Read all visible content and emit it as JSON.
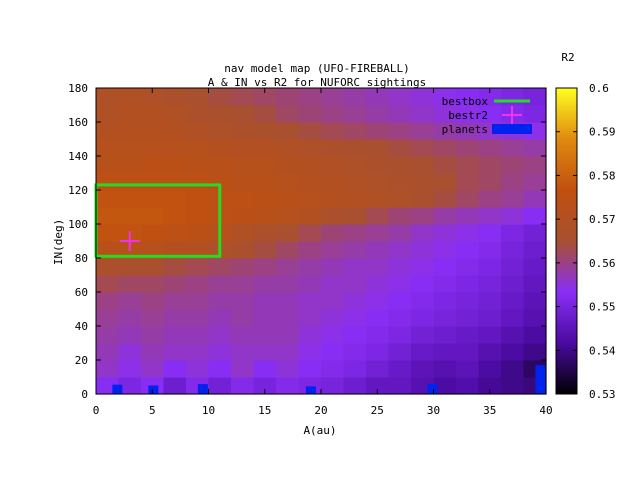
{
  "chart_data": {
    "type": "heatmap",
    "title_line1": "nav model map (UFO-FIREBALL)",
    "title_line2": "A & IN vs R2 for NUFORC sightings",
    "xlabel": "A(au)",
    "ylabel": "IN(deg)",
    "xlim": [
      0,
      40
    ],
    "ylim": [
      0,
      180
    ],
    "xticks": [
      "0",
      "5",
      "10",
      "15",
      "20",
      "25",
      "30",
      "35",
      "40"
    ],
    "xtick_values": [
      0,
      5,
      10,
      15,
      20,
      25,
      30,
      35,
      40
    ],
    "yticks": [
      "0",
      "20",
      "40",
      "60",
      "80",
      "100",
      "120",
      "140",
      "160",
      "180"
    ],
    "ytick_values": [
      0,
      20,
      40,
      60,
      80,
      100,
      120,
      140,
      160,
      180
    ],
    "colorbar": {
      "label": "R2",
      "range": [
        0.53,
        0.6
      ],
      "ticks": [
        "0.53",
        "0.54",
        "0.55",
        "0.56",
        "0.57",
        "0.58",
        "0.59",
        "0.6"
      ],
      "tick_values": [
        0.53,
        0.54,
        0.55,
        0.56,
        0.57,
        0.58,
        0.59,
        0.6
      ]
    },
    "palette": [
      "#000000",
      "#4a0aa0",
      "#8a2ef5",
      "#a85030",
      "#c05010",
      "#e08a10",
      "#ffff20"
    ],
    "grid_x_step": 2,
    "grid_y_step": 10,
    "grid_x_start": 0,
    "grid_y_start": 0,
    "grid": [
      [
        0.553,
        0.551,
        0.553,
        0.548,
        0.552,
        0.549,
        0.552,
        0.55,
        0.552,
        0.551,
        0.55,
        0.548,
        0.546,
        0.546,
        0.544,
        0.542,
        0.543,
        0.541,
        0.54,
        0.539
      ],
      [
        0.556,
        0.554,
        0.556,
        0.553,
        0.555,
        0.553,
        0.556,
        0.553,
        0.555,
        0.553,
        0.552,
        0.551,
        0.549,
        0.547,
        0.545,
        0.544,
        0.545,
        0.542,
        0.54,
        0.537
      ],
      [
        0.557,
        0.555,
        0.557,
        0.556,
        0.556,
        0.555,
        0.556,
        0.556,
        0.556,
        0.554,
        0.553,
        0.552,
        0.551,
        0.549,
        0.547,
        0.546,
        0.546,
        0.544,
        0.542,
        0.54
      ],
      [
        0.558,
        0.557,
        0.558,
        0.557,
        0.557,
        0.556,
        0.557,
        0.557,
        0.557,
        0.555,
        0.554,
        0.553,
        0.552,
        0.551,
        0.549,
        0.548,
        0.547,
        0.546,
        0.544,
        0.542
      ],
      [
        0.559,
        0.558,
        0.559,
        0.558,
        0.558,
        0.557,
        0.558,
        0.557,
        0.557,
        0.556,
        0.555,
        0.554,
        0.553,
        0.552,
        0.551,
        0.55,
        0.549,
        0.548,
        0.546,
        0.544
      ],
      [
        0.56,
        0.559,
        0.56,
        0.559,
        0.559,
        0.558,
        0.558,
        0.557,
        0.557,
        0.556,
        0.556,
        0.555,
        0.554,
        0.553,
        0.552,
        0.551,
        0.55,
        0.549,
        0.547,
        0.545
      ],
      [
        0.563,
        0.562,
        0.562,
        0.561,
        0.56,
        0.559,
        0.559,
        0.558,
        0.558,
        0.557,
        0.556,
        0.556,
        0.555,
        0.554,
        0.553,
        0.552,
        0.551,
        0.55,
        0.548,
        0.546
      ],
      [
        0.567,
        0.566,
        0.566,
        0.564,
        0.563,
        0.562,
        0.561,
        0.56,
        0.559,
        0.558,
        0.557,
        0.556,
        0.556,
        0.555,
        0.554,
        0.553,
        0.552,
        0.551,
        0.549,
        0.547
      ],
      [
        0.573,
        0.573,
        0.572,
        0.571,
        0.57,
        0.568,
        0.566,
        0.564,
        0.562,
        0.56,
        0.559,
        0.558,
        0.557,
        0.556,
        0.555,
        0.554,
        0.553,
        0.552,
        0.55,
        0.548
      ],
      [
        0.577,
        0.577,
        0.576,
        0.575,
        0.574,
        0.572,
        0.569,
        0.567,
        0.565,
        0.563,
        0.561,
        0.56,
        0.559,
        0.558,
        0.556,
        0.555,
        0.554,
        0.553,
        0.551,
        0.549
      ],
      [
        0.578,
        0.578,
        0.578,
        0.577,
        0.576,
        0.575,
        0.574,
        0.573,
        0.572,
        0.57,
        0.567,
        0.565,
        0.563,
        0.561,
        0.56,
        0.558,
        0.557,
        0.556,
        0.555,
        0.553
      ],
      [
        0.577,
        0.577,
        0.577,
        0.577,
        0.576,
        0.575,
        0.575,
        0.574,
        0.573,
        0.572,
        0.571,
        0.57,
        0.569,
        0.568,
        0.566,
        0.564,
        0.562,
        0.56,
        0.559,
        0.557
      ],
      [
        0.575,
        0.575,
        0.575,
        0.575,
        0.575,
        0.574,
        0.573,
        0.573,
        0.572,
        0.571,
        0.57,
        0.569,
        0.568,
        0.567,
        0.566,
        0.565,
        0.563,
        0.562,
        0.56,
        0.559
      ],
      [
        0.573,
        0.573,
        0.574,
        0.574,
        0.573,
        0.573,
        0.572,
        0.572,
        0.571,
        0.57,
        0.569,
        0.568,
        0.567,
        0.566,
        0.565,
        0.564,
        0.563,
        0.562,
        0.561,
        0.56
      ],
      [
        0.572,
        0.572,
        0.572,
        0.572,
        0.572,
        0.571,
        0.57,
        0.57,
        0.569,
        0.568,
        0.567,
        0.566,
        0.565,
        0.564,
        0.563,
        0.562,
        0.561,
        0.56,
        0.559,
        0.558
      ],
      [
        0.57,
        0.571,
        0.571,
        0.57,
        0.569,
        0.568,
        0.567,
        0.566,
        0.565,
        0.564,
        0.563,
        0.562,
        0.561,
        0.56,
        0.559,
        0.558,
        0.557,
        0.556,
        0.555,
        0.554
      ],
      [
        0.569,
        0.57,
        0.57,
        0.569,
        0.567,
        0.566,
        0.565,
        0.564,
        0.562,
        0.561,
        0.56,
        0.559,
        0.558,
        0.557,
        0.556,
        0.555,
        0.554,
        0.553,
        0.552,
        0.551
      ],
      [
        0.568,
        0.569,
        0.568,
        0.567,
        0.565,
        0.564,
        0.563,
        0.562,
        0.561,
        0.56,
        0.559,
        0.558,
        0.557,
        0.556,
        0.555,
        0.554,
        0.553,
        0.552,
        0.551,
        0.55
      ]
    ],
    "legend": [
      {
        "label": "bestbox",
        "color": "#22dd22",
        "style": "line"
      },
      {
        "label": "bestr2",
        "color": "#ee33ee",
        "style": "cross"
      },
      {
        "label": "planets",
        "color": "#0022ee",
        "style": "box"
      }
    ],
    "bestbox": {
      "x": [
        0,
        11
      ],
      "y": [
        81,
        123
      ]
    },
    "bestr2": {
      "x": 3,
      "y": 90
    },
    "planets": [
      {
        "x": 1.9,
        "y": 5.5
      },
      {
        "x": 5.1,
        "y": 5.0
      },
      {
        "x": 9.5,
        "y": 5.8
      },
      {
        "x": 19.1,
        "y": 4.5
      },
      {
        "x": 29.9,
        "y": 6.0
      },
      {
        "x": 39.5,
        "y": 17.0
      }
    ]
  }
}
